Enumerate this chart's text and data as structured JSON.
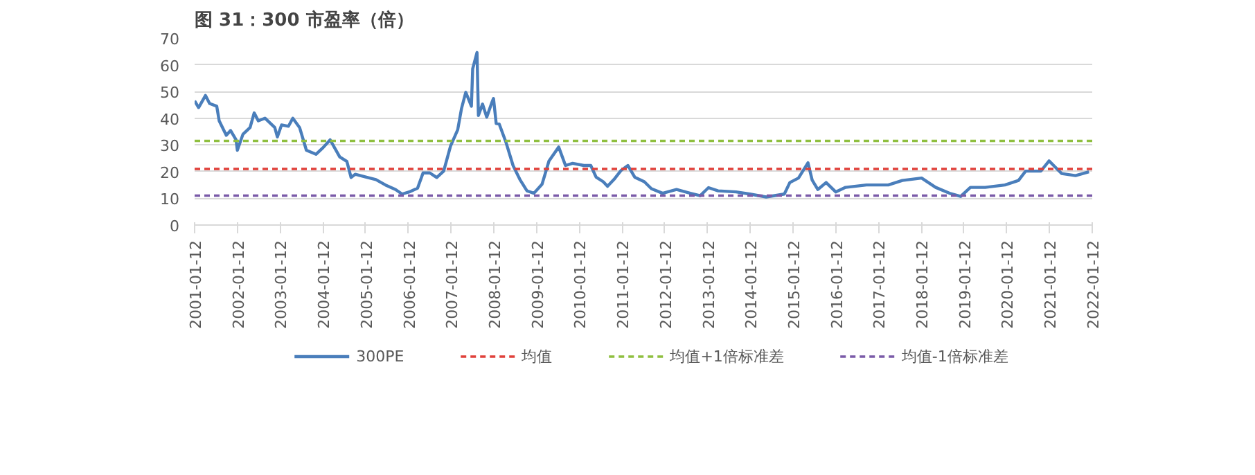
{
  "chart_data": {
    "type": "line",
    "title": "图 31：300 市盈率（倍）",
    "x": [
      "2001-01-12",
      "2001-02-15",
      "2001-04-15",
      "2001-05-20",
      "2001-07-20",
      "2001-08-10",
      "2001-10-10",
      "2001-11-15",
      "2002-01-01",
      "2002-01-12",
      "2002-03-01",
      "2002-05-01",
      "2002-06-05",
      "2002-07-10",
      "2002-09-05",
      "2002-11-28",
      "2002-12-20",
      "2003-01-25",
      "2003-03-25",
      "2003-05-01",
      "2003-06-28",
      "2003-08-25",
      "2003-11-15",
      "2004-01-15",
      "2004-03-15",
      "2004-06-05",
      "2004-08-05",
      "2004-09-10",
      "2004-10-15",
      "2005-01-30",
      "2005-04-10",
      "2005-07-01",
      "2005-09-25",
      "2005-11-20",
      "2006-01-20",
      "2006-04-01",
      "2006-05-18",
      "2006-07-15",
      "2006-09-12",
      "2006-11-10",
      "2007-01-08",
      "2007-03-10",
      "2007-04-12",
      "2007-05-18",
      "2007-07-05",
      "2007-07-16",
      "2007-08-22",
      "2007-09-03",
      "2007-10-08",
      "2007-11-13",
      "2007-12-28",
      "2008-01-10",
      "2008-02-02",
      "2008-02-28",
      "2008-04-26",
      "2008-06-25",
      "2008-08-22",
      "2008-10-22",
      "2008-12-20",
      "2009-02-28",
      "2009-04-28",
      "2009-07-20",
      "2009-09-16",
      "2009-11-16",
      "2010-02-20",
      "2010-04-20",
      "2010-06-05",
      "2010-08-05",
      "2010-09-10",
      "2010-11-05",
      "2011-01-05",
      "2011-03-03",
      "2011-05-01",
      "2011-07-22",
      "2011-09-20",
      "2011-12-25",
      "2012-04-22",
      "2012-08-18",
      "2012-11-10",
      "2013-01-20",
      "2013-04-12",
      "2013-09-12",
      "2014-01-08",
      "2014-05-28",
      "2014-10-30",
      "2014-12-16",
      "2015-02-28",
      "2015-05-20",
      "2015-06-25",
      "2015-08-12",
      "2015-10-22",
      "2016-01-12",
      "2016-04-05",
      "2016-10-01",
      "2017-04-05",
      "2017-08-03",
      "2018-01-15",
      "2018-05-15",
      "2018-09-10",
      "2018-12-15",
      "2019-03-08",
      "2019-07-12",
      "2019-12-28",
      "2020-04-22",
      "2020-06-22",
      "2020-10-30",
      "2021-01-08",
      "2021-02-25",
      "2021-04-25",
      "2021-08-22",
      "2021-12-15"
    ],
    "series": [
      {
        "name": "300PE",
        "color": "#4a7ebb",
        "values": [
          46.5,
          44,
          48.5,
          45.5,
          44.5,
          39,
          33.6,
          35.4,
          31.9,
          28,
          34,
          36.5,
          42,
          39,
          40,
          36.5,
          33,
          37.5,
          37,
          40,
          36.5,
          28,
          26.5,
          29,
          31.9,
          25.5,
          23.8,
          17.8,
          19,
          17.8,
          17,
          15,
          13.3,
          11.6,
          12.4,
          13.8,
          19.5,
          19.5,
          17.8,
          20.2,
          29.6,
          35.7,
          43.7,
          49.7,
          44.5,
          58.5,
          64.6,
          41,
          45.3,
          40.4,
          46,
          47.4,
          38,
          37.8,
          30.9,
          22.3,
          17.1,
          12.8,
          11.9,
          15.3,
          24,
          29.2,
          22.3,
          23.1,
          22.3,
          22.3,
          17.9,
          16.2,
          14.5,
          17.1,
          20.5,
          22.3,
          17.9,
          16.2,
          13.6,
          11.9,
          13.3,
          11.9,
          11,
          14,
          12.8,
          12.4,
          11.6,
          10.5,
          11.6,
          15.9,
          17.6,
          23.3,
          16.8,
          13.3,
          15.9,
          12.4,
          14.1,
          15,
          15,
          16.7,
          17.6,
          14.1,
          11.9,
          10.7,
          14.1,
          14.1,
          15,
          16.7,
          20.2,
          20.2,
          24,
          21.9,
          19.3,
          18.5,
          19.9
        ]
      }
    ],
    "ref_lines": [
      {
        "axis": "y",
        "value": 21,
        "label": "均值",
        "color": "#e0403a",
        "line_style": "dashed"
      },
      {
        "axis": "y",
        "value": 31.5,
        "label": "均值+1倍标准差",
        "color": "#8fbf3f",
        "line_style": "dashed"
      },
      {
        "axis": "y",
        "value": 11,
        "label": "均值-1倍标准差",
        "color": "#7a5aa8",
        "line_style": "dashed"
      }
    ],
    "xlim": [
      "2001-01-12",
      "2022-01-12"
    ],
    "xticks": [
      "2001-01-12",
      "2002-01-12",
      "2003-01-12",
      "2004-01-12",
      "2005-01-12",
      "2006-01-12",
      "2007-01-12",
      "2008-01-12",
      "2009-01-12",
      "2010-01-12",
      "2011-01-12",
      "2012-01-12",
      "2013-01-12",
      "2014-01-12",
      "2015-01-12",
      "2016-01-12",
      "2017-01-12",
      "2018-01-12",
      "2019-01-12",
      "2020-01-12",
      "2021-01-12",
      "2022-01-12"
    ],
    "ylim": [
      0,
      70
    ],
    "yticks": [
      0,
      10,
      20,
      30,
      40,
      50,
      60,
      70
    ],
    "grid": "y",
    "legend": "bottom"
  }
}
